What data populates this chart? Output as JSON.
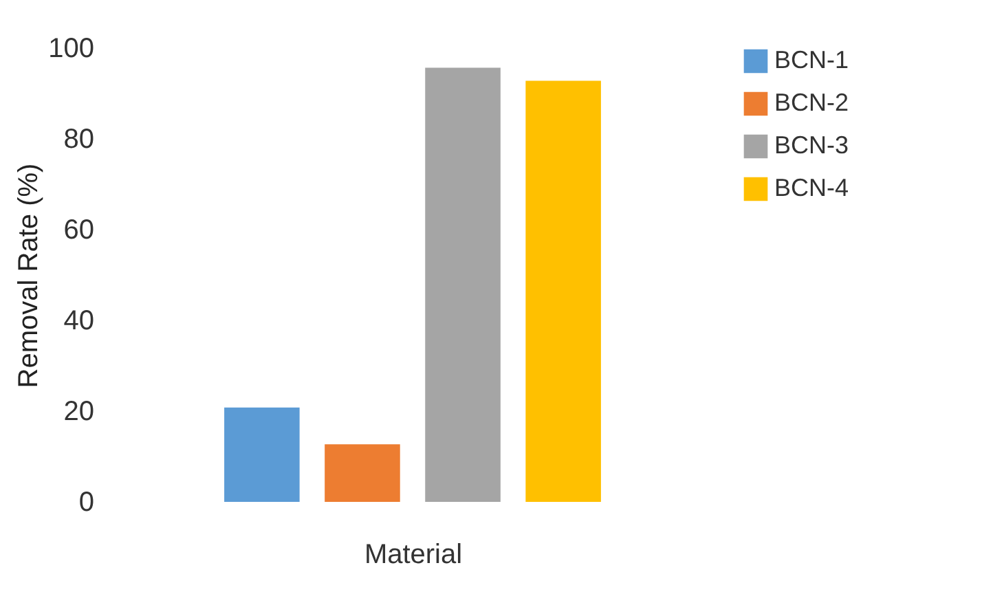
{
  "chart_data": {
    "type": "bar",
    "ylabel": "Removal Rate (%)",
    "xlabel": "Material",
    "categories": [
      null
    ],
    "series": [
      {
        "name": "BCN-1",
        "color": "#5b9bd5",
        "values": [
          20.8
        ]
      },
      {
        "name": "BCN-2",
        "color": "#ed7d31",
        "values": [
          12.7
        ]
      },
      {
        "name": "BCN-3",
        "color": "#a5a5a5",
        "values": [
          95.7
        ]
      },
      {
        "name": "BCN-4",
        "color": "#ffc000",
        "values": [
          92.8
        ]
      }
    ],
    "ylim": [
      0,
      100
    ],
    "yticks": [
      0,
      20,
      40,
      60,
      80,
      100
    ],
    "grid": false,
    "legend": "right"
  }
}
